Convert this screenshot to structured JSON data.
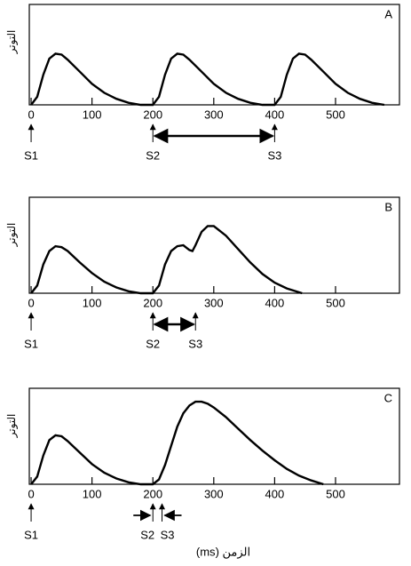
{
  "chart_data": [
    {
      "type": "line",
      "title": "A",
      "y_label": "التوتر",
      "xlim": [
        -3,
        605
      ],
      "xticks": [
        0,
        100,
        200,
        300,
        400,
        500
      ],
      "ylim": [
        0,
        100
      ],
      "x": [
        0,
        10,
        20,
        30,
        40,
        50,
        60,
        80,
        100,
        120,
        140,
        160,
        180,
        200,
        210,
        220,
        230,
        240,
        250,
        260,
        280,
        300,
        320,
        340,
        360,
        380,
        400,
        410,
        420,
        430,
        440,
        450,
        460,
        480,
        500,
        520,
        540,
        560,
        580
      ],
      "series": [
        {
          "color": "#000000",
          "values": [
            0,
            8,
            30,
            46,
            51,
            50,
            45,
            33,
            21,
            12,
            6,
            2,
            0,
            0,
            8,
            30,
            46,
            51,
            50,
            45,
            33,
            21,
            12,
            6,
            2,
            0,
            0,
            8,
            30,
            46,
            51,
            50,
            45,
            33,
            21,
            12,
            6,
            2,
            0
          ]
        }
      ],
      "annotations": [
        {
          "label": "S1",
          "x": 0
        },
        {
          "label": "S2",
          "x": 200
        },
        {
          "label": "S3",
          "x": 400
        }
      ]
    },
    {
      "type": "line",
      "title": "B",
      "y_label": "التوتر",
      "xlim": [
        -3,
        605
      ],
      "xticks": [
        0,
        100,
        200,
        300,
        400,
        500
      ],
      "ylim": [
        0,
        100
      ],
      "x": [
        0,
        10,
        20,
        30,
        40,
        50,
        60,
        80,
        100,
        120,
        140,
        160,
        180,
        200,
        210,
        220,
        230,
        240,
        250,
        260,
        265,
        270,
        280,
        290,
        300,
        320,
        340,
        360,
        380,
        400,
        420,
        445
      ],
      "series": [
        {
          "color": "#000000",
          "values": [
            0,
            8,
            30,
            44,
            49,
            48,
            44,
            32,
            21,
            12,
            6,
            2,
            0,
            0,
            8,
            30,
            44,
            49,
            50,
            45,
            44,
            50,
            64,
            70,
            70,
            60,
            46,
            32,
            20,
            11,
            5,
            0
          ]
        }
      ],
      "annotations": [
        {
          "label": "S1",
          "x": 0
        },
        {
          "label": "S2",
          "x": 200
        },
        {
          "label": "S3",
          "x": 270
        }
      ]
    },
    {
      "type": "line",
      "title": "C",
      "y_label": "التوتر",
      "x_label": "الزمن (ms)",
      "xlim": [
        -3,
        605
      ],
      "xticks": [
        0,
        100,
        200,
        300,
        400,
        500
      ],
      "ylim": [
        0,
        100
      ],
      "x": [
        0,
        10,
        20,
        30,
        40,
        50,
        60,
        80,
        100,
        120,
        140,
        160,
        180,
        200,
        210,
        220,
        230,
        240,
        250,
        260,
        270,
        280,
        290,
        300,
        320,
        340,
        360,
        380,
        400,
        420,
        440,
        460,
        480
      ],
      "series": [
        {
          "color": "#000000",
          "values": [
            0,
            8,
            30,
            46,
            51,
            50,
            45,
            33,
            21,
            12,
            6,
            2,
            0,
            0,
            5,
            20,
            40,
            60,
            74,
            82,
            86,
            86,
            84,
            80,
            70,
            58,
            46,
            35,
            25,
            16,
            9,
            4,
            0
          ]
        }
      ],
      "annotations": [
        {
          "label": "S1",
          "x": 0
        },
        {
          "label": "S2",
          "x": 200
        },
        {
          "label": "S3",
          "x": 215
        }
      ]
    }
  ]
}
